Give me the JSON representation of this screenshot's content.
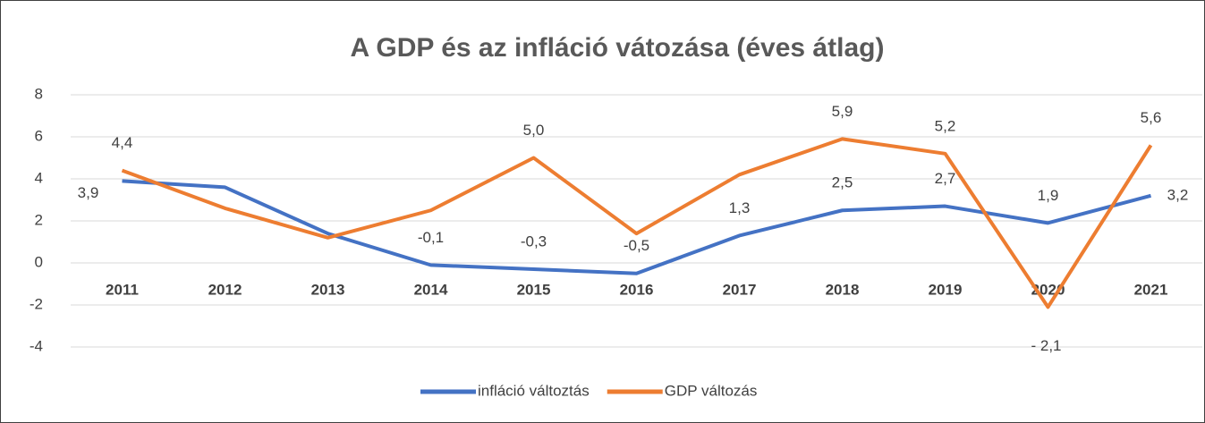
{
  "chart_data": {
    "type": "line",
    "title": "A GDP és az infláció vátozása (éves átlag)",
    "categories": [
      "2011",
      "2012",
      "2013",
      "2014",
      "2015",
      "2016",
      "2017",
      "2018",
      "2019",
      "2020",
      "2021"
    ],
    "series": [
      {
        "name": "infláció változtás",
        "color": "#4472c4",
        "values": [
          3.9,
          3.6,
          1.4,
          -0.1,
          -0.3,
          -0.5,
          1.3,
          2.5,
          2.7,
          1.9,
          3.2
        ],
        "value_labels": [
          "3,9",
          null,
          null,
          "-0,1",
          "-0,3",
          "-0,5",
          "1,3",
          "2,5",
          "2,7",
          "1,9",
          "3,2"
        ]
      },
      {
        "name": "GDP változás",
        "color": "#ed7d31",
        "values": [
          4.4,
          2.6,
          1.2,
          2.5,
          5.0,
          1.4,
          4.2,
          5.9,
          5.2,
          -2.1,
          5.6
        ],
        "value_labels": [
          "4,4",
          null,
          null,
          null,
          "5,0",
          null,
          null,
          "5,9",
          "5,2",
          "- 2,1",
          "5,6"
        ]
      }
    ],
    "ylim": [
      -4,
      8
    ],
    "yticks": [
      -4,
      -2,
      0,
      2,
      4,
      6,
      8
    ],
    "grid": true,
    "legend": "bottom"
  }
}
